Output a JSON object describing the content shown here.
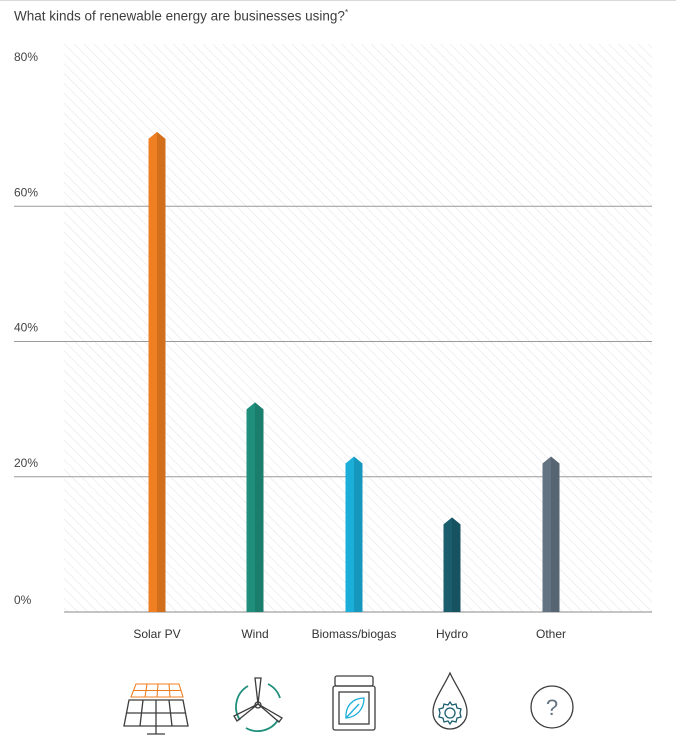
{
  "title": "What kinds of renewable energy are businesses using?",
  "title_sup": "*",
  "chart_data": {
    "type": "bar",
    "title": "What kinds of renewable energy are businesses using?",
    "categories": [
      "Solar PV",
      "Wind",
      "Biomass/biogas",
      "Hydro",
      "Other"
    ],
    "values": [
      71,
      31,
      23,
      14,
      23
    ],
    "unit": "%",
    "ylim": [
      0,
      80
    ],
    "yticks": [
      0,
      20,
      40,
      60,
      80
    ],
    "ytick_labels": [
      "0%",
      "20%",
      "40%",
      "60%",
      "80%"
    ],
    "grid": true,
    "legend": "none",
    "colors": [
      "#f07f22",
      "#1f8f7c",
      "#1aaed9",
      "#1a5e6e",
      "#647382"
    ]
  },
  "icons": [
    "solar-panel-icon",
    "wind-turbine-icon",
    "biomass-leaf-icon",
    "hydro-drop-icon",
    "other-question-icon"
  ],
  "icon_color": "#3d3d3d"
}
